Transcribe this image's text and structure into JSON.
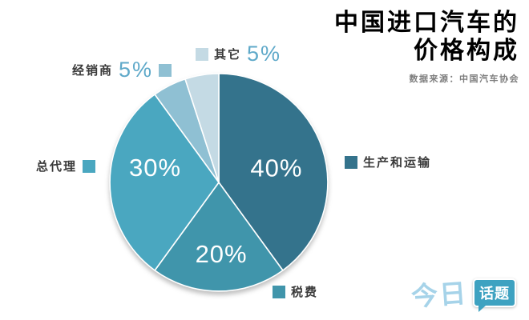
{
  "header": {
    "title_line1": "中国进口汽车的",
    "title_line2": "价格构成",
    "source": "数据来源：中国汽车协会"
  },
  "chart_data": {
    "type": "pie",
    "title": "中国进口汽车的价格构成",
    "source": "数据来源：中国汽车协会",
    "start_angle_deg": 0,
    "direction": "clockwise",
    "legend_position": "around",
    "slices": [
      {
        "label": "生产和运输",
        "value": 40,
        "pct_label": "40%",
        "color": "#34738c"
      },
      {
        "label": "税费",
        "value": 20,
        "pct_label": "20%",
        "color": "#4095ab"
      },
      {
        "label": "总代理",
        "value": 30,
        "pct_label": "30%",
        "color": "#4aa7c0"
      },
      {
        "label": "经销商",
        "value": 5,
        "pct_label": "5%",
        "color": "#8fc0d3"
      },
      {
        "label": "其它",
        "value": 5,
        "pct_label": "5%",
        "color": "#c4dae4"
      }
    ]
  },
  "logo": {
    "part1": "今日",
    "part2": "话题"
  }
}
